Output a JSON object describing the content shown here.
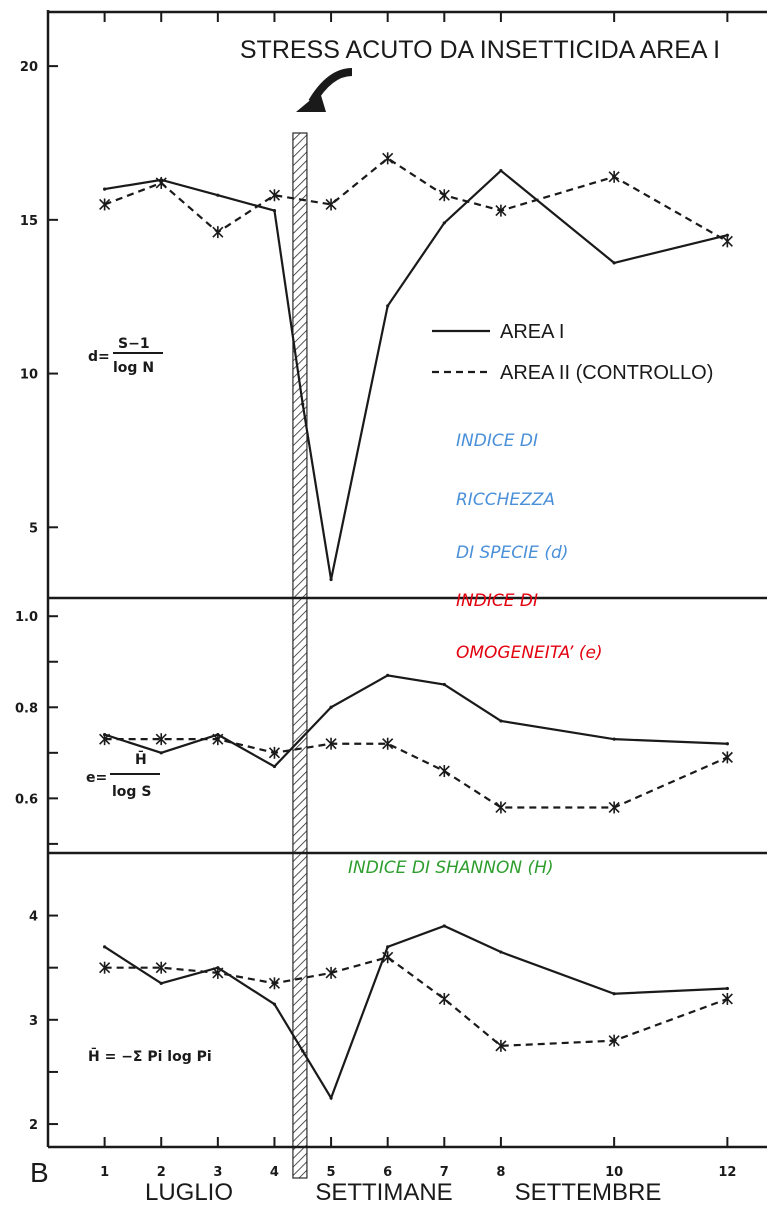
{
  "chart_data": {
    "type": "line",
    "title": "STRESS ACUTO DA INSETTICIDA AREA I",
    "panel_letter": "B",
    "x_axis": {
      "ticks": [
        1,
        2,
        3,
        4,
        5,
        6,
        7,
        8,
        10,
        12
      ],
      "range": [
        0,
        12.7
      ],
      "labels": [
        "LUGLIO",
        "SETTIMANE",
        "SETTEMBRE"
      ]
    },
    "stress_event_x": 4.45,
    "legend": [
      {
        "label": "AREA I",
        "style": "solid"
      },
      {
        "label": "AREA II (CONTROLLO)",
        "style": "dashed"
      }
    ],
    "panels": [
      {
        "id": "d",
        "formula": {
          "lhs": "d=",
          "numerator": "S−1",
          "denominator": "log N"
        },
        "annotation": [
          "INDICE DI",
          "RICCHEZZA",
          "DI SPECIE (d)"
        ],
        "annotation_color": "#4a90d9",
        "ylim": [
          2.7,
          21.5
        ],
        "yticks": [
          5,
          10,
          15,
          20
        ],
        "ytick_labels": [
          "5",
          "10",
          "15",
          "20"
        ],
        "series": [
          {
            "name": "AREA I",
            "style": "solid",
            "marker": false,
            "x": [
              1,
              2,
              3,
              4,
              4.5,
              5,
              6,
              7,
              8,
              10,
              12
            ],
            "y": [
              16.0,
              16.3,
              15.8,
              15.3,
              9.0,
              3.3,
              12.2,
              14.9,
              16.6,
              13.6,
              14.5
            ]
          },
          {
            "name": "AREA II (CONTROLLO)",
            "style": "dashed",
            "marker": true,
            "x": [
              1,
              2,
              3,
              4,
              5,
              6,
              7,
              8,
              10,
              12
            ],
            "y": [
              15.5,
              16.2,
              14.6,
              15.8,
              15.5,
              17.0,
              15.8,
              15.3,
              16.4,
              14.3
            ]
          }
        ]
      },
      {
        "id": "e",
        "formula": {
          "lhs": "e=",
          "numerator": "H̄",
          "denominator": "log S"
        },
        "annotation": [
          "INDICE DI",
          "OMOGENEITA’ (e)"
        ],
        "annotation_color": "#e3000f",
        "ylim": [
          0.48,
          1.04
        ],
        "yticks": [
          0.5,
          0.6,
          0.7,
          0.8,
          0.9,
          1.0
        ],
        "ytick_labels": [
          "",
          "0.6",
          "",
          "0.8",
          "",
          "1.0"
        ],
        "series": [
          {
            "name": "AREA I",
            "style": "solid",
            "marker": false,
            "x": [
              1,
              2,
              3,
              4,
              5,
              6,
              7,
              8,
              10,
              12
            ],
            "y": [
              0.74,
              0.7,
              0.74,
              0.67,
              0.8,
              0.87,
              0.85,
              0.77,
              0.73,
              0.72
            ]
          },
          {
            "name": "AREA II (CONTROLLO)",
            "style": "dashed",
            "marker": true,
            "x": [
              1,
              2,
              3,
              4,
              5,
              6,
              7,
              8,
              10,
              12
            ],
            "y": [
              0.73,
              0.73,
              0.73,
              0.7,
              0.72,
              0.72,
              0.66,
              0.58,
              0.58,
              0.69
            ]
          }
        ]
      },
      {
        "id": "H",
        "formula": {
          "lhs": "H̄ = −Σ Pi log Pi",
          "numerator": "",
          "denominator": ""
        },
        "annotation": [
          "INDICE DI SHANNON (H)"
        ],
        "annotation_color": "#2e9e2e",
        "ylim": [
          1.78,
          4.6
        ],
        "yticks": [
          2,
          2.5,
          3,
          3.5,
          4
        ],
        "ytick_labels": [
          "2",
          "",
          "3",
          "",
          "4"
        ],
        "series": [
          {
            "name": "AREA I",
            "style": "solid",
            "marker": false,
            "x": [
              1,
              2,
              3,
              4,
              4.5,
              5,
              6,
              7,
              8,
              10,
              12
            ],
            "y": [
              3.7,
              3.35,
              3.5,
              3.15,
              2.7,
              2.25,
              3.7,
              3.9,
              3.65,
              3.25,
              3.3
            ]
          },
          {
            "name": "AREA II (CONTROLLO)",
            "style": "dashed",
            "marker": true,
            "x": [
              1,
              2,
              3,
              4,
              5,
              6,
              7,
              8,
              10,
              12
            ],
            "y": [
              3.5,
              3.5,
              3.45,
              3.35,
              3.45,
              3.6,
              3.2,
              2.75,
              2.8,
              3.2
            ]
          }
        ]
      }
    ]
  }
}
